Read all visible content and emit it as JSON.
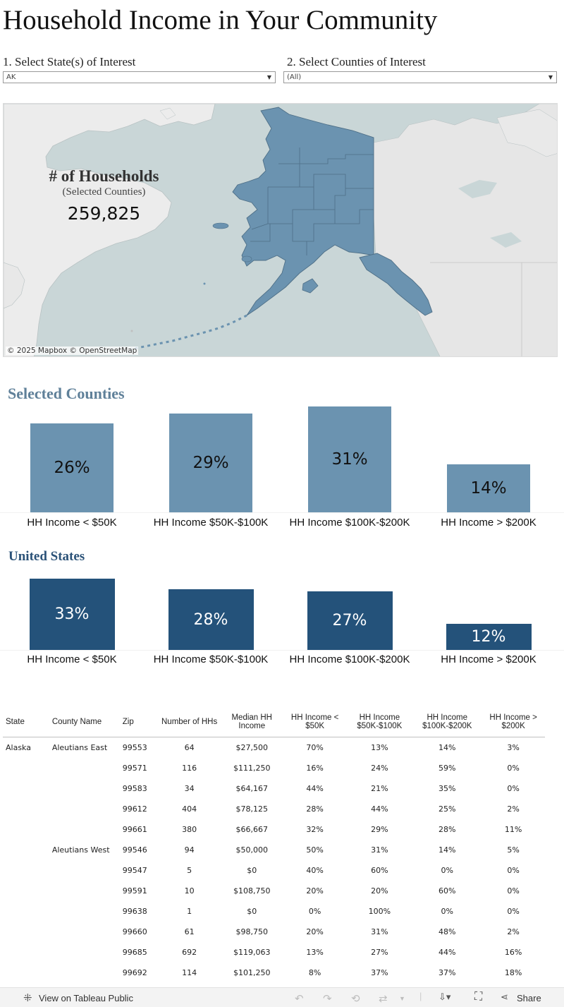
{
  "title": "Household Income in Your Community",
  "filters": {
    "state_label": "1.  Select State(s) of Interest",
    "state_value": "AK",
    "county_label": "2.  Select Counties of Interest",
    "county_value": "(All)"
  },
  "map": {
    "households_title": "# of Households",
    "households_subtitle": "(Selected Counties)",
    "households_value": "259,825",
    "attribution": "© 2025 Mapbox  © OpenStreetMap",
    "region_color": "#6b93b0",
    "water_color": "#c9d6d7",
    "land_color": "#e6e6e6"
  },
  "selected": {
    "title": "Selected  Counties",
    "title_color": "#5f8099",
    "bar_color": "#6b93b0",
    "label_color": "#111111"
  },
  "us": {
    "title": "United States",
    "title_color": "#2b5278",
    "bar_color": "#24527a",
    "label_color": "#ffffff"
  },
  "chart_data": [
    {
      "type": "bar",
      "title": "Selected  Counties",
      "categories": [
        "HH Income < $50K",
        "HH Income $50K-$100K",
        "HH Income $100K-$200K",
        "HH Income > $200K"
      ],
      "values": [
        26,
        29,
        31,
        14
      ],
      "value_labels": [
        "26%",
        "29%",
        "31%",
        "14%"
      ],
      "ylim": [
        0,
        31
      ]
    },
    {
      "type": "bar",
      "title": "United States",
      "categories": [
        "HH Income < $50K",
        "HH Income $50K-$100K",
        "HH Income $100K-$200K",
        "HH Income > $200K"
      ],
      "values": [
        33,
        28,
        27,
        12
      ],
      "value_labels": [
        "33%",
        "28%",
        "27%",
        "12%"
      ],
      "ylim": [
        0,
        33
      ]
    }
  ],
  "table": {
    "headers": [
      "State",
      "County Name",
      "Zip",
      "Number of HHs",
      "Median HH Income",
      "HH Income < $50K",
      "HH Income $50K-$100K",
      "HH Income $100K-$200K",
      "HH Income > $200K"
    ],
    "rows": [
      [
        "Alaska",
        "Aleutians East",
        "99553",
        "64",
        "$27,500",
        "70%",
        "13%",
        "14%",
        "3%"
      ],
      [
        "",
        "",
        "99571",
        "116",
        "$111,250",
        "16%",
        "24%",
        "59%",
        "0%"
      ],
      [
        "",
        "",
        "99583",
        "34",
        "$64,167",
        "44%",
        "21%",
        "35%",
        "0%"
      ],
      [
        "",
        "",
        "99612",
        "404",
        "$78,125",
        "28%",
        "44%",
        "25%",
        "2%"
      ],
      [
        "",
        "",
        "99661",
        "380",
        "$66,667",
        "32%",
        "29%",
        "28%",
        "11%"
      ],
      [
        "",
        "Aleutians West",
        "99546",
        "94",
        "$50,000",
        "50%",
        "31%",
        "14%",
        "5%"
      ],
      [
        "",
        "",
        "99547",
        "5",
        "$0",
        "40%",
        "60%",
        "0%",
        "0%"
      ],
      [
        "",
        "",
        "99591",
        "10",
        "$108,750",
        "20%",
        "20%",
        "60%",
        "0%"
      ],
      [
        "",
        "",
        "99638",
        "1",
        "$0",
        "0%",
        "100%",
        "0%",
        "0%"
      ],
      [
        "",
        "",
        "99660",
        "61",
        "$98,750",
        "20%",
        "31%",
        "48%",
        "2%"
      ],
      [
        "",
        "",
        "99685",
        "692",
        "$119,063",
        "13%",
        "27%",
        "44%",
        "16%"
      ],
      [
        "",
        "",
        "99692",
        "114",
        "$101,250",
        "8%",
        "37%",
        "37%",
        "18%"
      ]
    ]
  },
  "toolbar": {
    "view_label": "View on Tableau Public",
    "share_label": "Share",
    "icons": [
      "tableau-icon",
      "undo-icon",
      "redo-icon",
      "revert-icon",
      "refresh-icon",
      "download-icon",
      "fullscreen-icon",
      "share-icon"
    ]
  }
}
